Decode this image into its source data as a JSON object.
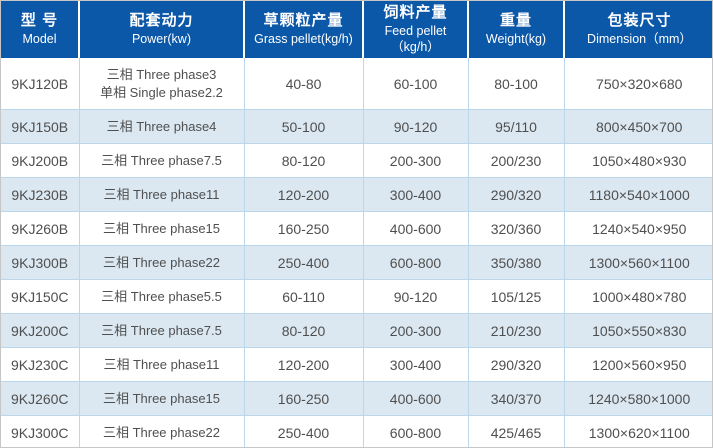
{
  "colors": {
    "header_background": "#0b57a8",
    "header_text": "#ffffff",
    "row_stripe": "#dbe8f2",
    "grid_line": "#bcd7ea",
    "body_text": "#4f4f4f",
    "outer_border": "#c6c6c6"
  },
  "table": {
    "columns": [
      {
        "zh": "型 号",
        "en_lines": [
          "Model"
        ]
      },
      {
        "zh": "配套动力",
        "en_lines": [
          "Power(kw)"
        ]
      },
      {
        "zh": "草颗粒产量",
        "en_lines": [
          "Grass pellet(kg/h)"
        ]
      },
      {
        "zh": "饲料产量",
        "en_lines": [
          "Feed pellet",
          "（kg/h）"
        ]
      },
      {
        "zh": "重量",
        "en_lines": [
          "Weight(kg)"
        ]
      },
      {
        "zh": "包装尺寸",
        "en_lines": [
          "Dimension（mm）"
        ]
      }
    ],
    "rows": [
      {
        "model": "9KJ120B",
        "power_lines": [
          "三相 Three phase3",
          "单相 Single phase2.2"
        ],
        "grass": "40-80",
        "feed": "60-100",
        "weight": "80-100",
        "dimension": "750×320×680"
      },
      {
        "model": "9KJ150B",
        "power_lines": [
          "三相 Three phase4"
        ],
        "grass": "50-100",
        "feed": "90-120",
        "weight": "95/110",
        "dimension": "800×450×700"
      },
      {
        "model": "9KJ200B",
        "power_lines": [
          "三相 Three phase7.5"
        ],
        "grass": "80-120",
        "feed": "200-300",
        "weight": "200/230",
        "dimension": "1050×480×930"
      },
      {
        "model": "9KJ230B",
        "power_lines": [
          "三相 Three phase11"
        ],
        "grass": "120-200",
        "feed": "300-400",
        "weight": "290/320",
        "dimension": "1180×540×1000"
      },
      {
        "model": "9KJ260B",
        "power_lines": [
          "三相 Three phase15"
        ],
        "grass": "160-250",
        "feed": "400-600",
        "weight": "320/360",
        "dimension": "1240×540×950"
      },
      {
        "model": "9KJ300B",
        "power_lines": [
          "三相 Three phase22"
        ],
        "grass": "250-400",
        "feed": "600-800",
        "weight": "350/380",
        "dimension": "1300×560×1100"
      },
      {
        "model": "9KJ150C",
        "power_lines": [
          "三相 Three phase5.5"
        ],
        "grass": "60-110",
        "feed": "90-120",
        "weight": "105/125",
        "dimension": "1000×480×780"
      },
      {
        "model": "9KJ200C",
        "power_lines": [
          "三相 Three phase7.5"
        ],
        "grass": "80-120",
        "feed": "200-300",
        "weight": "210/230",
        "dimension": "1050×550×830"
      },
      {
        "model": "9KJ230C",
        "power_lines": [
          "三相 Three phase11"
        ],
        "grass": "120-200",
        "feed": "300-400",
        "weight": "290/320",
        "dimension": "1200×560×950"
      },
      {
        "model": "9KJ260C",
        "power_lines": [
          "三相 Three phase15"
        ],
        "grass": "160-250",
        "feed": "400-600",
        "weight": "340/370",
        "dimension": "1240×580×1000"
      },
      {
        "model": "9KJ300C",
        "power_lines": [
          "三相 Three phase22"
        ],
        "grass": "250-400",
        "feed": "600-800",
        "weight": "425/465",
        "dimension": "1300×620×1100"
      }
    ]
  }
}
